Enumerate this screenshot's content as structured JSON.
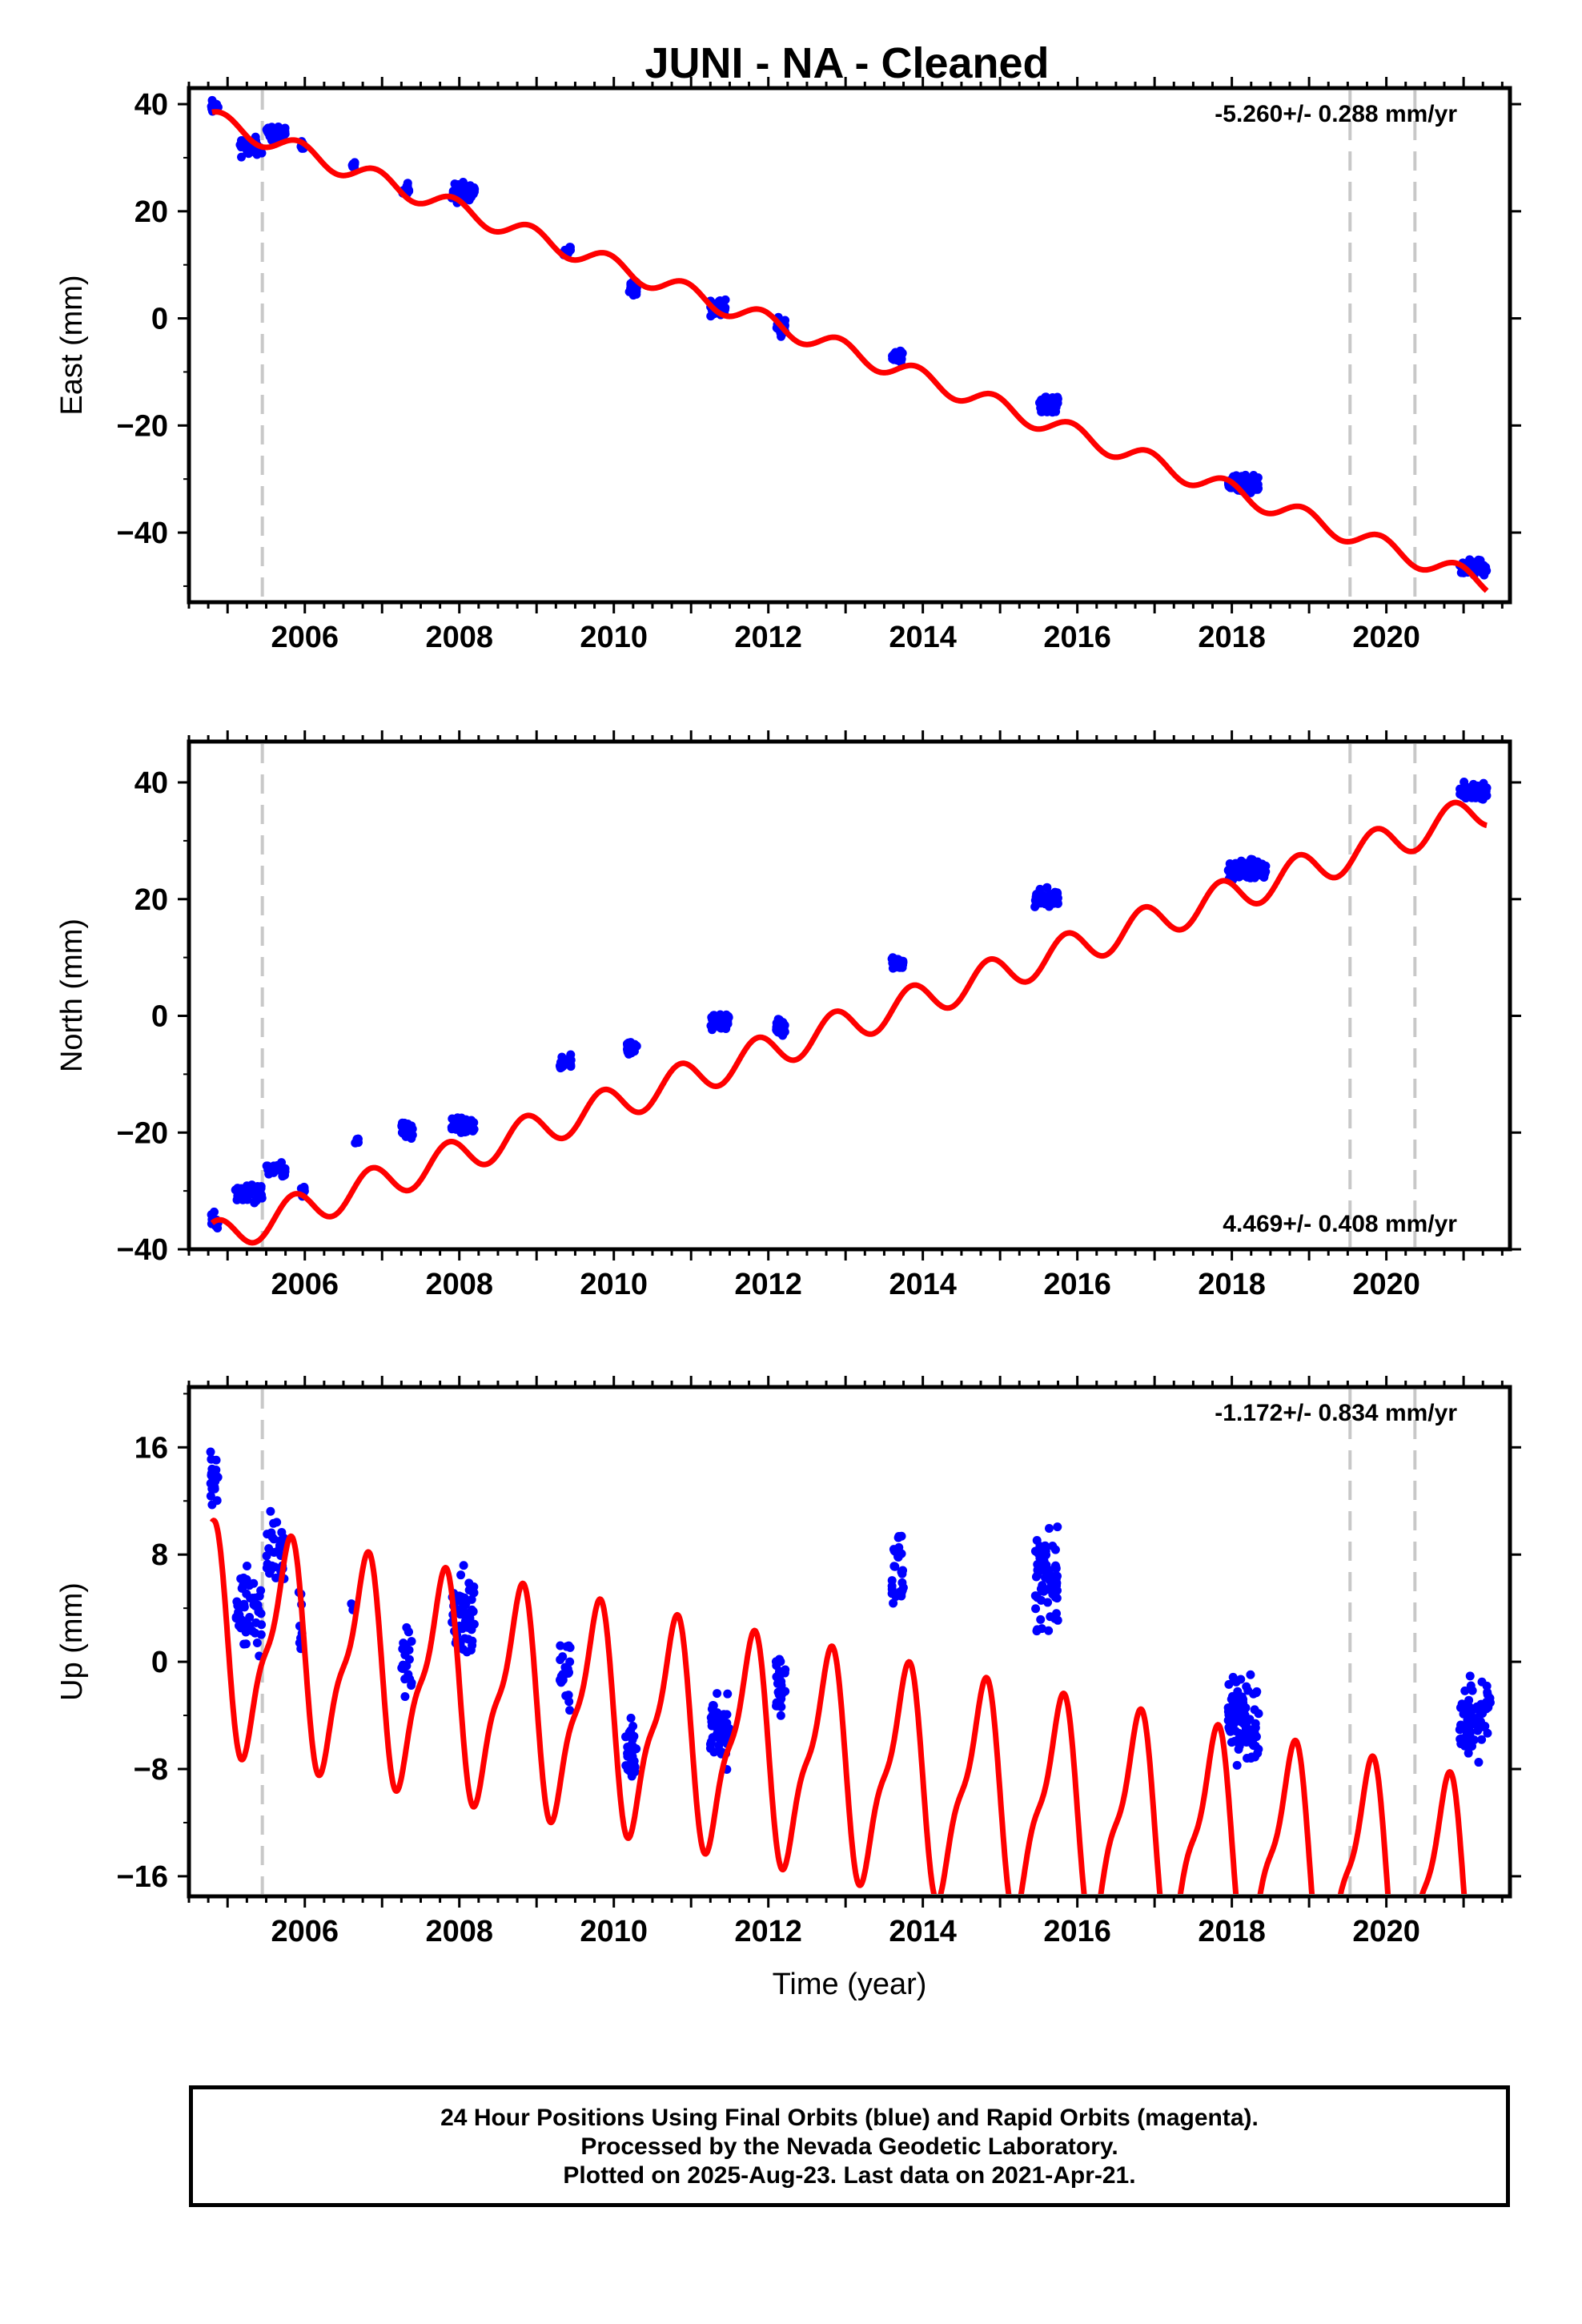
{
  "title": "JUNI  - NA - Cleaned",
  "footer": {
    "line1": "24 Hour Positions Using Final Orbits (blue) and Rapid Orbits (magenta).",
    "line2": "Processed by the Nevada Geodetic Laboratory.",
    "line3": "Plotted on 2025-Aug-23. Last data on 2021-Apr-21."
  },
  "colors": {
    "observations": "#0000ff",
    "model": "#ff0000",
    "event_lines": "#c8c8c8"
  },
  "chart_data": [
    {
      "type": "scatter",
      "ylabel": "East (mm)",
      "xlabel": "",
      "xlim": [
        2004.5,
        2021.6
      ],
      "ylim": [
        -53,
        43
      ],
      "yticks": [
        40,
        20,
        0,
        -20,
        -40
      ],
      "xticks": [
        2006,
        2008,
        2010,
        2012,
        2014,
        2016,
        2018,
        2020
      ],
      "rate_label": "-5.260+/- 0.288 mm/yr",
      "rate_label_position": "top-right",
      "event_lines": [
        2005.45,
        2019.53,
        2020.37
      ],
      "model": {
        "offset": 38.5,
        "rate": -5.26,
        "amplitude": 1.8,
        "phase": 0.8,
        "t0": 2004.8,
        "breaks": [
          [
            2005.45,
            -5.0
          ],
          [
            2005.5,
            3.5
          ]
        ],
        "range": [
          2004.8,
          2021.3
        ]
      },
      "observation_clusters": [
        {
          "x_start": 2004.78,
          "x_end": 2004.88,
          "y_center": 39.5,
          "spread": 1.8,
          "n": 20
        },
        {
          "x_start": 2005.15,
          "x_end": 2005.45,
          "y_center": 32.0,
          "spread": 2.5,
          "n": 40
        },
        {
          "x_start": 2005.5,
          "x_end": 2005.75,
          "y_center": 34.5,
          "spread": 1.8,
          "n": 30
        },
        {
          "x_start": 2005.95,
          "x_end": 2006.0,
          "y_center": 32.5,
          "spread": 1.2,
          "n": 8
        },
        {
          "x_start": 2006.6,
          "x_end": 2006.65,
          "y_center": 28.8,
          "spread": 0.8,
          "n": 6
        },
        {
          "x_start": 2007.25,
          "x_end": 2007.35,
          "y_center": 24.0,
          "spread": 2.0,
          "n": 18
        },
        {
          "x_start": 2007.9,
          "x_end": 2008.2,
          "y_center": 23.5,
          "spread": 2.4,
          "n": 50
        },
        {
          "x_start": 2009.35,
          "x_end": 2009.45,
          "y_center": 12.5,
          "spread": 1.8,
          "n": 20
        },
        {
          "x_start": 2010.2,
          "x_end": 2010.3,
          "y_center": 6.0,
          "spread": 2.0,
          "n": 24
        },
        {
          "x_start": 2011.25,
          "x_end": 2011.45,
          "y_center": 2.0,
          "spread": 2.3,
          "n": 50
        },
        {
          "x_start": 2012.1,
          "x_end": 2012.22,
          "y_center": -1.5,
          "spread": 2.2,
          "n": 30
        },
        {
          "x_start": 2013.6,
          "x_end": 2013.75,
          "y_center": -7.0,
          "spread": 1.5,
          "n": 28
        },
        {
          "x_start": 2015.5,
          "x_end": 2015.75,
          "y_center": -16.0,
          "spread": 2.0,
          "n": 70
        },
        {
          "x_start": 2017.95,
          "x_end": 2018.35,
          "y_center": -31.0,
          "spread": 2.2,
          "n": 90
        },
        {
          "x_start": 2020.95,
          "x_end": 2021.3,
          "y_center": -46.5,
          "spread": 2.0,
          "n": 60
        }
      ]
    },
    {
      "type": "scatter",
      "ylabel": "North (mm)",
      "xlabel": "",
      "xlim": [
        2004.5,
        2021.6
      ],
      "ylim": [
        -40,
        47
      ],
      "yticks": [
        40,
        20,
        0,
        -20,
        -40
      ],
      "xticks": [
        2006,
        2008,
        2010,
        2012,
        2014,
        2016,
        2018,
        2020
      ],
      "rate_label": "4.469+/- 0.408 mm/yr",
      "rate_label_position": "bottom-right",
      "event_lines": [
        2005.45,
        2019.53,
        2020.37
      ],
      "model": {
        "offset": -35.5,
        "rate": 4.469,
        "amplitude": 3.0,
        "phase": 1.2,
        "t0": 2004.8,
        "breaks": [],
        "range": [
          2004.8,
          2021.3
        ]
      },
      "observation_clusters": [
        {
          "x_start": 2004.78,
          "x_end": 2004.88,
          "y_center": -35.5,
          "spread": 2.2,
          "n": 14
        },
        {
          "x_start": 2005.1,
          "x_end": 2005.45,
          "y_center": -30.5,
          "spread": 2.5,
          "n": 40
        },
        {
          "x_start": 2005.5,
          "x_end": 2005.75,
          "y_center": -26.5,
          "spread": 1.8,
          "n": 26
        },
        {
          "x_start": 2005.95,
          "x_end": 2006.0,
          "y_center": -30.0,
          "spread": 2.0,
          "n": 8
        },
        {
          "x_start": 2006.65,
          "x_end": 2006.7,
          "y_center": -21.5,
          "spread": 1.0,
          "n": 6
        },
        {
          "x_start": 2007.25,
          "x_end": 2007.4,
          "y_center": -20.0,
          "spread": 2.2,
          "n": 20
        },
        {
          "x_start": 2007.9,
          "x_end": 2008.2,
          "y_center": -19.0,
          "spread": 2.3,
          "n": 50
        },
        {
          "x_start": 2009.3,
          "x_end": 2009.45,
          "y_center": -8.0,
          "spread": 2.0,
          "n": 20
        },
        {
          "x_start": 2010.15,
          "x_end": 2010.3,
          "y_center": -5.5,
          "spread": 1.8,
          "n": 22
        },
        {
          "x_start": 2011.25,
          "x_end": 2011.5,
          "y_center": -1.0,
          "spread": 2.2,
          "n": 40
        },
        {
          "x_start": 2012.1,
          "x_end": 2012.22,
          "y_center": -2.0,
          "spread": 2.0,
          "n": 30
        },
        {
          "x_start": 2013.6,
          "x_end": 2013.75,
          "y_center": 9.0,
          "spread": 1.6,
          "n": 28
        },
        {
          "x_start": 2015.45,
          "x_end": 2015.75,
          "y_center": 20.0,
          "spread": 2.3,
          "n": 70
        },
        {
          "x_start": 2017.95,
          "x_end": 2018.45,
          "y_center": 25.0,
          "spread": 2.4,
          "n": 90
        },
        {
          "x_start": 2020.95,
          "x_end": 2021.3,
          "y_center": 38.5,
          "spread": 2.2,
          "n": 60
        }
      ]
    },
    {
      "type": "scatter",
      "ylabel": "Up (mm)",
      "xlabel": "Time (year)",
      "xlim": [
        2004.5,
        2021.6
      ],
      "ylim": [
        -17.5,
        20.5
      ],
      "yticks": [
        16,
        8,
        0,
        -8,
        -16
      ],
      "xticks": [
        2006,
        2008,
        2010,
        2012,
        2014,
        2016,
        2018,
        2020
      ],
      "rate_label": "-1.172+/- 0.834 mm/yr",
      "rate_label_position": "top-right",
      "event_lines": [
        2005.45,
        2019.53,
        2020.37
      ],
      "model": {
        "offset": 9.0,
        "rate": -1.172,
        "amplitude": 7.5,
        "phase": 1.85,
        "t0": 2004.8,
        "breaks": [],
        "range": [
          2004.8,
          2021.3
        ]
      },
      "observation_clusters": [
        {
          "x_start": 2004.78,
          "x_end": 2004.88,
          "y_center": 14.0,
          "spread": 4.0,
          "n": 20
        },
        {
          "x_start": 2005.1,
          "x_end": 2005.45,
          "y_center": 4.0,
          "spread": 5.0,
          "n": 50
        },
        {
          "x_start": 2005.5,
          "x_end": 2005.75,
          "y_center": 8.0,
          "spread": 4.5,
          "n": 30
        },
        {
          "x_start": 2005.92,
          "x_end": 2005.98,
          "y_center": 3.0,
          "spread": 5.0,
          "n": 8
        },
        {
          "x_start": 2006.6,
          "x_end": 2006.65,
          "y_center": 4.0,
          "spread": 1.0,
          "n": 4
        },
        {
          "x_start": 2007.25,
          "x_end": 2007.4,
          "y_center": 0.0,
          "spread": 4.0,
          "n": 22
        },
        {
          "x_start": 2007.9,
          "x_end": 2008.2,
          "y_center": 3.5,
          "spread": 5.0,
          "n": 60
        },
        {
          "x_start": 2009.3,
          "x_end": 2009.45,
          "y_center": -0.5,
          "spread": 4.0,
          "n": 22
        },
        {
          "x_start": 2010.15,
          "x_end": 2010.3,
          "y_center": -7.0,
          "spread": 3.5,
          "n": 30
        },
        {
          "x_start": 2011.25,
          "x_end": 2011.5,
          "y_center": -5.0,
          "spread": 3.5,
          "n": 55
        },
        {
          "x_start": 2012.1,
          "x_end": 2012.22,
          "y_center": -1.5,
          "spread": 4.0,
          "n": 30
        },
        {
          "x_start": 2013.6,
          "x_end": 2013.75,
          "y_center": 7.0,
          "spread": 4.5,
          "n": 30
        },
        {
          "x_start": 2015.45,
          "x_end": 2015.75,
          "y_center": 6.0,
          "spread": 5.0,
          "n": 70
        },
        {
          "x_start": 2017.95,
          "x_end": 2018.35,
          "y_center": -4.5,
          "spread": 4.5,
          "n": 100
        },
        {
          "x_start": 2020.95,
          "x_end": 2021.35,
          "y_center": -4.0,
          "spread": 4.0,
          "n": 70
        }
      ]
    }
  ]
}
